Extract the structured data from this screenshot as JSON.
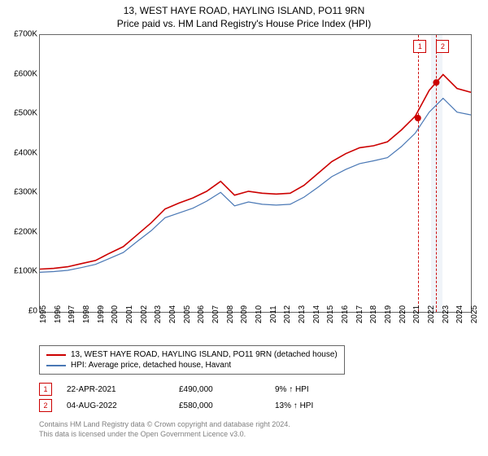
{
  "titles": {
    "line1": "13, WEST HAYE ROAD, HAYLING ISLAND, PO11 9RN",
    "line2": "Price paid vs. HM Land Registry's House Price Index (HPI)"
  },
  "chart": {
    "type": "line",
    "background_color": "#ffffff",
    "border_color": "#666666",
    "y": {
      "min": 0,
      "max": 700000,
      "step": 100000,
      "labels": [
        "£0",
        "£100K",
        "£200K",
        "£300K",
        "£400K",
        "£500K",
        "£600K",
        "£700K"
      ],
      "label_fontsize": 10
    },
    "x": {
      "min": 1995,
      "max": 2025,
      "step": 1,
      "labels": [
        "1995",
        "1996",
        "1997",
        "1998",
        "1999",
        "2000",
        "2001",
        "2002",
        "2003",
        "2004",
        "2005",
        "2006",
        "2007",
        "2008",
        "2009",
        "2010",
        "2011",
        "2012",
        "2013",
        "2014",
        "2015",
        "2016",
        "2017",
        "2018",
        "2019",
        "2020",
        "2021",
        "2022",
        "2023",
        "2024",
        "2025"
      ],
      "label_fontsize": 10
    },
    "series": [
      {
        "name": "13, WEST HAYE ROAD, HAYLING ISLAND, PO11 9RN (detached house)",
        "color": "#cc0000",
        "line_width": 1.6,
        "y": [
          108,
          110,
          114,
          122,
          130,
          148,
          165,
          195,
          225,
          260,
          275,
          288,
          305,
          330,
          295,
          305,
          300,
          298,
          300,
          320,
          350,
          380,
          400,
          415,
          420,
          430,
          460,
          495,
          560,
          600,
          565,
          555
        ]
      },
      {
        "name": "HPI: Average price, detached house, Havant",
        "color": "#4a78b5",
        "line_width": 1.2,
        "y": [
          100,
          102,
          105,
          112,
          120,
          135,
          150,
          178,
          205,
          238,
          250,
          262,
          280,
          302,
          268,
          278,
          272,
          270,
          272,
          290,
          315,
          342,
          360,
          375,
          382,
          390,
          418,
          452,
          505,
          540,
          505,
          498
        ]
      }
    ],
    "markers": [
      {
        "badge": "1",
        "date": "22-APR-2021",
        "price": "£490,000",
        "hpi": "9% ↑ HPI",
        "x_year": 2021.31,
        "y_value": 490000,
        "dot_color": "#cc0000"
      },
      {
        "badge": "2",
        "date": "04-AUG-2022",
        "price": "£580,000",
        "hpi": "13% ↑ HPI",
        "x_year": 2022.59,
        "y_value": 580000,
        "dot_color": "#cc0000"
      }
    ],
    "highlight_band": {
      "from_year": 2022.2,
      "to_year": 2023.0,
      "color": "#e6ecf5"
    }
  },
  "legend": {
    "items": [
      {
        "color": "#cc0000",
        "label": "13, WEST HAYE ROAD, HAYLING ISLAND, PO11 9RN (detached house)"
      },
      {
        "color": "#4a78b5",
        "label": "HPI: Average price, detached house, Havant"
      }
    ]
  },
  "credits": {
    "line1": "Contains HM Land Registry data © Crown copyright and database right 2024.",
    "line2": "This data is licensed under the Open Government Licence v3.0."
  }
}
